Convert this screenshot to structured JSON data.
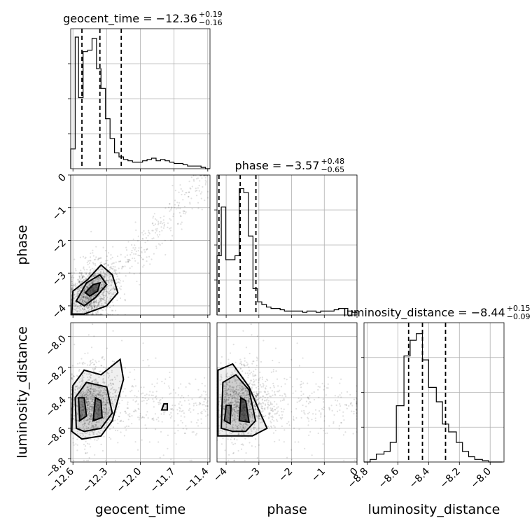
{
  "chart_data": {
    "type": "corner",
    "grid": true,
    "parameters": [
      "geocent_time",
      "phase",
      "luminosity_distance"
    ],
    "titles": [
      {
        "param": "geocent_time",
        "prefix": "geocent_time = ",
        "median": "−12.36",
        "plus": "+0.19",
        "minus": "−0.16"
      },
      {
        "param": "phase",
        "prefix": "phase = ",
        "median": "−3.57",
        "plus": "+0.48",
        "minus": "−0.65"
      },
      {
        "param": "luminosity_distance",
        "prefix": "luminosity_distance = ",
        "median": "−8.44",
        "plus": "+0.15",
        "minus": "−0.09"
      }
    ],
    "xlabels": [
      "geocent_time",
      "phase",
      "luminosity_distance"
    ],
    "ylabels": [
      "",
      "phase",
      "luminosity_distance"
    ],
    "ticks": {
      "geocent_time": {
        "values": [
          -12.6,
          -12.3,
          -12.0,
          -11.7,
          -11.4
        ],
        "labels": [
          "−12.6",
          "−12.3",
          "−12.0",
          "−11.7",
          "−11.4"
        ]
      },
      "phase": {
        "values": [
          -4,
          -3,
          -2,
          -1,
          0
        ],
        "labels": [
          "−4",
          "−3",
          "−2",
          "−1",
          "0"
        ]
      },
      "luminosity_distance": {
        "values": [
          -8.8,
          -8.6,
          -8.4,
          -8.2,
          -8.0
        ],
        "labels": [
          "−8.8",
          "−8.6",
          "−8.4",
          "−8.2",
          "−8.0"
        ]
      }
    },
    "ranges": {
      "geocent_time": [
        -12.62,
        -11.38
      ],
      "phase": [
        -4.28,
        0.0
      ],
      "luminosity_distance": [
        -8.82,
        -7.91
      ]
    },
    "quantiles": {
      "geocent_time": [
        -12.52,
        -12.36,
        -12.17
      ],
      "phase": [
        -4.22,
        -3.57,
        -3.09
      ],
      "luminosity_distance": [
        -8.53,
        -8.44,
        -8.29
      ]
    },
    "histograms": {
      "geocent_time": {
        "edges": [
          -12.62,
          -12.58,
          -12.55,
          -12.51,
          -12.47,
          -12.43,
          -12.39,
          -12.35,
          -12.31,
          -12.27,
          -12.23,
          -12.19,
          -12.15,
          -12.11,
          -12.07,
          -12.02,
          -11.98,
          -11.94,
          -11.9,
          -11.86,
          -11.82,
          -11.78,
          -11.74,
          -11.7,
          -11.66,
          -11.62,
          -11.58,
          -11.54,
          -11.5,
          -11.46,
          -11.42,
          -11.38
        ],
        "counts": [
          0.15,
          1.0,
          0.54,
          0.89,
          0.9,
          0.99,
          0.76,
          0.61,
          0.38,
          0.23,
          0.12,
          0.09,
          0.07,
          0.06,
          0.05,
          0.05,
          0.06,
          0.07,
          0.08,
          0.06,
          0.07,
          0.06,
          0.05,
          0.04,
          0.04,
          0.03,
          0.02,
          0.02,
          0.02,
          0.01,
          0.0
        ]
      },
      "phase": {
        "edges": [
          -4.28,
          -4.15,
          -4.01,
          -3.87,
          -3.73,
          -3.6,
          -3.46,
          -3.32,
          -3.18,
          -3.04,
          -2.91,
          -2.77,
          -2.63,
          -2.49,
          -2.35,
          -2.22,
          -2.08,
          -1.94,
          -1.8,
          -1.66,
          -1.53,
          -1.39,
          -1.25,
          -1.11,
          -0.97,
          -0.84,
          -0.7,
          -0.56,
          -0.42,
          -0.28,
          -0.14,
          0.0
        ],
        "counts": [
          0.45,
          0.82,
          0.42,
          0.42,
          0.45,
          0.96,
          0.93,
          0.6,
          0.2,
          0.1,
          0.08,
          0.06,
          0.05,
          0.05,
          0.04,
          0.03,
          0.03,
          0.03,
          0.03,
          0.02,
          0.03,
          0.03,
          0.02,
          0.03,
          0.03,
          0.03,
          0.04,
          0.05,
          0.05,
          0.03,
          0.02
        ]
      },
      "luminosity_distance": {
        "edges": [
          -8.82,
          -8.78,
          -8.74,
          -8.69,
          -8.65,
          -8.61,
          -8.56,
          -8.52,
          -8.48,
          -8.44,
          -8.4,
          -8.35,
          -8.31,
          -8.27,
          -8.22,
          -8.18,
          -8.14,
          -8.1,
          -8.05,
          -8.01,
          -7.97,
          -7.92
        ],
        "counts": [
          0.0,
          0.02,
          0.06,
          0.08,
          0.15,
          0.43,
          0.81,
          0.93,
          0.98,
          0.78,
          0.57,
          0.46,
          0.29,
          0.23,
          0.15,
          0.08,
          0.04,
          0.02,
          0.01,
          0.0,
          0.0
        ]
      }
    }
  }
}
